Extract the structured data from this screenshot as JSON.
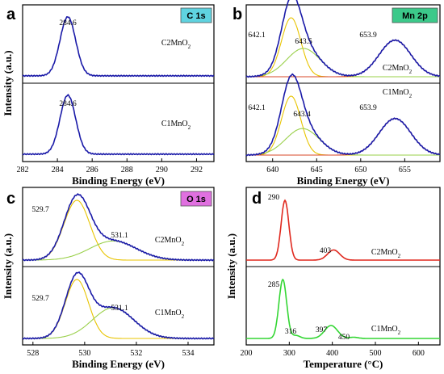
{
  "colors": {
    "envelope": "#1a1aa8",
    "fit1": "#e8c400",
    "fit2": "#3ab83a",
    "fit3": "#d84a2a",
    "fit4": "#9ad04a",
    "tpr_c2": "#e0281e",
    "tpr_c1": "#33d633",
    "tag_c": "#5fd3e0",
    "tag_mn": "#3cc98a",
    "tag_o": "#e070e0"
  },
  "chart_data": [
    {
      "panel": "a",
      "type": "line",
      "tag": "C 1s",
      "xlabel": "Binding Energy (eV)",
      "ylabel": "Intensity (a.u.)",
      "xlim": [
        282,
        293
      ],
      "xticks": [
        "282",
        "284",
        "286",
        "288",
        "290",
        "292"
      ],
      "series": [
        {
          "name": "C2MnO2",
          "peaks": [
            {
              "x": 284.6,
              "height": 1.0,
              "width": 0.45,
              "label": "284.6"
            }
          ],
          "baseline": 0.08
        },
        {
          "name": "C1MnO2",
          "peaks": [
            {
              "x": 284.6,
              "height": 1.0,
              "width": 0.45,
              "label": "284.6"
            }
          ],
          "baseline": 0.08
        }
      ]
    },
    {
      "panel": "b",
      "type": "line",
      "tag": "Mn 2p",
      "xlabel": "Binding Energy (eV)",
      "ylabel": "",
      "xlim": [
        637,
        659
      ],
      "xticks": [
        "640",
        "645",
        "650",
        "655"
      ],
      "series": [
        {
          "name": "C2MnO2",
          "peaks": [
            {
              "x": 642.1,
              "height": 1.0,
              "width": 1.1,
              "label": "642.1"
            },
            {
              "x": 643.5,
              "height": 0.48,
              "width": 1.9,
              "label": "643.5"
            },
            {
              "x": 653.9,
              "height": 0.62,
              "width": 1.8,
              "label": "653.9"
            }
          ]
        },
        {
          "name": "C1MnO2",
          "peaks": [
            {
              "x": 642.1,
              "height": 1.0,
              "width": 1.1,
              "label": "642.1"
            },
            {
              "x": 643.4,
              "height": 0.45,
              "width": 1.9,
              "label": "643.4"
            },
            {
              "x": 653.9,
              "height": 0.62,
              "width": 1.8,
              "label": "653.9"
            }
          ]
        }
      ]
    },
    {
      "panel": "c",
      "type": "line",
      "tag": "O 1s",
      "xlabel": "Binding Energy (eV)",
      "ylabel": "Intensity (a.u.)",
      "xlim": [
        527.6,
        535
      ],
      "xticks": [
        "528",
        "530",
        "532",
        "534"
      ],
      "series": [
        {
          "name": "C2MnO2",
          "peaks": [
            {
              "x": 529.7,
              "height": 1.0,
              "width": 0.5,
              "label": "529.7"
            },
            {
              "x": 531.1,
              "height": 0.32,
              "width": 0.9,
              "label": "531.1"
            }
          ]
        },
        {
          "name": "C1MnO2",
          "peaks": [
            {
              "x": 529.7,
              "height": 1.0,
              "width": 0.45,
              "label": "529.7"
            },
            {
              "x": 531.1,
              "height": 0.52,
              "width": 0.8,
              "label": "531.1"
            }
          ]
        }
      ]
    },
    {
      "panel": "d",
      "type": "line",
      "tag": "",
      "xlabel": "Temperature (°C)",
      "ylabel": "Intensity (a.u.)",
      "xlim": [
        200,
        650
      ],
      "xticks": [
        "200",
        "300",
        "400",
        "500",
        "600"
      ],
      "series": [
        {
          "name": "C2MnO2",
          "peaks": [
            {
              "x": 290,
              "height": 1.0,
              "width": 9,
              "label": "290"
            },
            {
              "x": 403,
              "height": 0.17,
              "width": 14,
              "label": "403"
            }
          ]
        },
        {
          "name": "C1MnO2",
          "peaks": [
            {
              "x": 285,
              "height": 1.0,
              "width": 9,
              "label": "285"
            },
            {
              "x": 316,
              "height": 0.05,
              "width": 9,
              "label": "316"
            },
            {
              "x": 397,
              "height": 0.22,
              "width": 15,
              "label": "397"
            },
            {
              "x": 450,
              "height": 0.02,
              "width": 10,
              "label": "450"
            }
          ]
        }
      ]
    }
  ]
}
